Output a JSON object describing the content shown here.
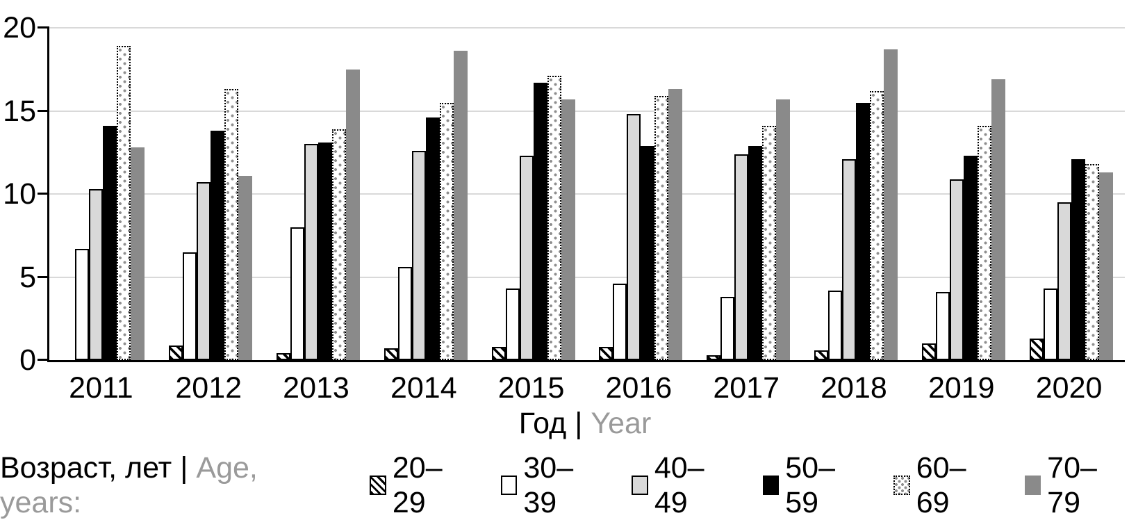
{
  "chart_data": {
    "type": "bar",
    "title": "",
    "categories": [
      "2011",
      "2012",
      "2013",
      "2014",
      "2015",
      "2016",
      "2017",
      "2018",
      "2019",
      "2020"
    ],
    "series": [
      {
        "name": "20–29",
        "pattern": "hatch",
        "values": [
          0,
          0.9,
          0.4,
          0.7,
          0.8,
          0.8,
          0.3,
          0.6,
          1.0,
          1.3
        ]
      },
      {
        "name": "30–39",
        "pattern": "white",
        "values": [
          6.7,
          6.5,
          8.0,
          5.6,
          4.3,
          4.6,
          3.8,
          4.2,
          4.1,
          4.3
        ]
      },
      {
        "name": "40–49",
        "pattern": "lightgray",
        "values": [
          10.3,
          10.7,
          13.0,
          12.6,
          12.3,
          14.8,
          12.4,
          12.1,
          10.9,
          9.5
        ]
      },
      {
        "name": "50–59",
        "pattern": "black",
        "values": [
          14.1,
          13.8,
          13.1,
          14.6,
          16.7,
          12.9,
          12.9,
          15.5,
          12.3,
          12.1
        ]
      },
      {
        "name": "60–69",
        "pattern": "dots",
        "values": [
          18.9,
          16.3,
          13.9,
          15.5,
          17.1,
          15.9,
          14.1,
          16.2,
          14.1,
          11.8
        ]
      },
      {
        "name": "70–79",
        "pattern": "gray",
        "values": [
          12.8,
          11.1,
          17.5,
          18.6,
          15.7,
          16.3,
          15.7,
          18.7,
          16.9,
          11.3
        ]
      }
    ],
    "xlabel_ru": "Год",
    "xlabel_en": "Year",
    "label_sep": "|",
    "legend_title_ru": "Возраст, лет",
    "legend_title_en": "Age, years:",
    "y_ticks": [
      0,
      5,
      10,
      15,
      20
    ],
    "y_tick_labels": [
      "0",
      "5",
      "10",
      "15",
      "20"
    ],
    "ylim": [
      0,
      20
    ],
    "grid": true,
    "legend_position": "bottom"
  },
  "colors": {
    "bar_black": "#000000",
    "bar_light_gray": "#d9d9d9",
    "bar_gray": "#8a8a8a",
    "dot_fill": "#8f8f8f",
    "gridline": "#d9d9d9",
    "text_primary": "#000000",
    "text_secondary": "#9a9a9a"
  }
}
